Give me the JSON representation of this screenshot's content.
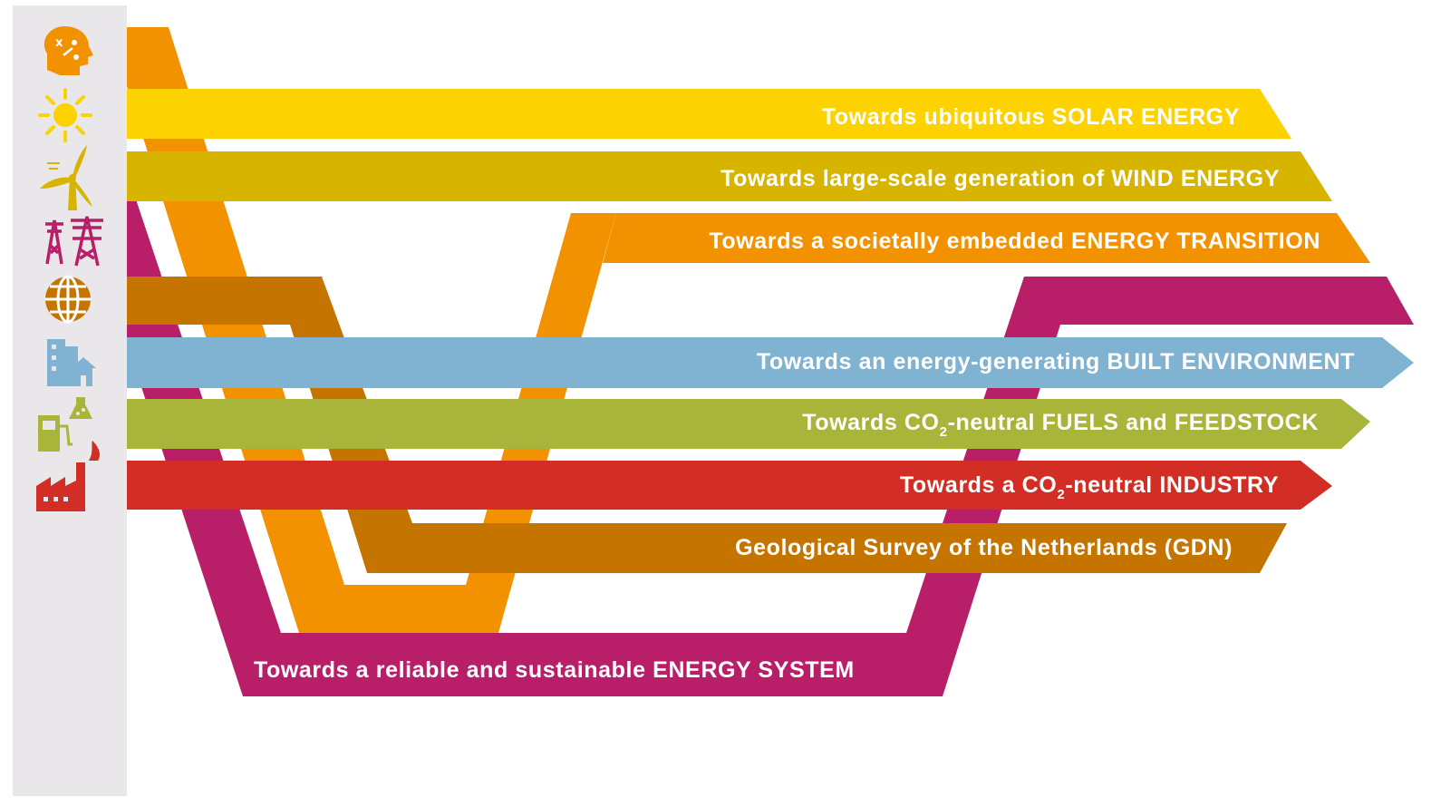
{
  "colors": {
    "sidebar": "#e9e7e9",
    "solar": "#fcd200",
    "wind": "#d6b400",
    "transition": "#f39200",
    "system": "#b81f68",
    "gdn": "#c57400",
    "built": "#7fb3d1",
    "fuels": "#a8b43a",
    "industry": "#d22e25"
  },
  "icons": [
    {
      "name": "head-strategy-icon",
      "color": "#f39200"
    },
    {
      "name": "sun-icon",
      "color": "#fcd200"
    },
    {
      "name": "wind-turbine-icon",
      "color": "#d6b400"
    },
    {
      "name": "power-pylon-icon",
      "color": "#b81f68"
    },
    {
      "name": "globe-icon",
      "color": "#c57400"
    },
    {
      "name": "buildings-house-icon",
      "color": "#7fb3d1"
    },
    {
      "name": "fuel-pump-flask-icon",
      "color": "#a8b43a"
    },
    {
      "name": "factory-flame-icon",
      "color": "#d22e25"
    }
  ],
  "bands": {
    "solar": {
      "label": "Towards ubiquitous SOLAR ENERGY"
    },
    "wind": {
      "label": "Towards large-scale generation of WIND ENERGY"
    },
    "transition": {
      "label": "Towards a societally embedded ENERGY TRANSITION"
    },
    "built": {
      "label": "Towards an energy-generating BUILT ENVIRONMENT"
    },
    "fuels": {
      "label_pre": "Towards CO",
      "label_sub": "2",
      "label_post": "-neutral FUELS and FEEDSTOCK"
    },
    "industry": {
      "label_pre": "Towards a CO",
      "label_sub": "2",
      "label_post": "-neutral INDUSTRY"
    },
    "gdn": {
      "label": "Geological Survey of the Netherlands (GDN)"
    },
    "system": {
      "label": "Towards a reliable and sustainable ENERGY SYSTEM"
    }
  }
}
